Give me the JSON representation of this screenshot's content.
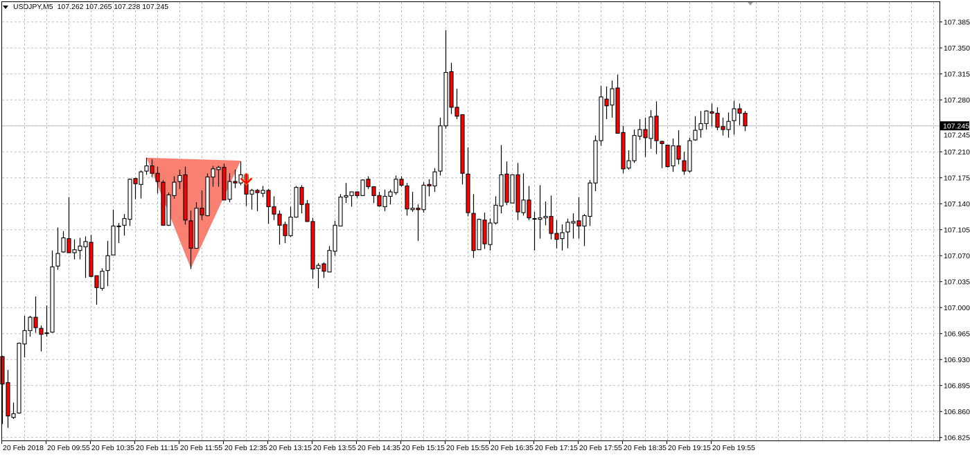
{
  "header": {
    "symbol": "USDJPY,M5",
    "ohlc": "107.262 107.265 107.238 107.245"
  },
  "colors": {
    "background": "#ffffff",
    "grid": "#c0c0c0",
    "bull_body": "#ffffff",
    "bear_body": "#ff0000",
    "wick": "#000000",
    "triangle": "#fa8072",
    "arrow": "#ff0000",
    "price_label_bg": "#000000"
  },
  "chart_data": {
    "type": "candlestick",
    "symbol": "USDJPY",
    "timeframe": "M5",
    "ylim": [
      106.825,
      107.385
    ],
    "grid": true,
    "current_price": "107.245",
    "y_ticks": [
      "107.385",
      "107.350",
      "107.315",
      "107.280",
      "107.245",
      "107.210",
      "107.175",
      "107.140",
      "107.105",
      "107.070",
      "107.035",
      "107.000",
      "106.965",
      "106.930",
      "106.895",
      "106.860",
      "106.825"
    ],
    "x_ticks": [
      "20 Feb 2018",
      "20 Feb 09:55",
      "20 Feb 10:35",
      "20 Feb 11:15",
      "20 Feb 11:55",
      "20 Feb 12:35",
      "20 Feb 13:15",
      "20 Feb 13:55",
      "20 Feb 14:35",
      "20 Feb 15:15",
      "20 Feb 15:55",
      "20 Feb 16:35",
      "20 Feb 17:15",
      "20 Feb 17:55",
      "20 Feb 18:35",
      "20 Feb 19:15",
      "20 Feb 19:55"
    ],
    "ohlc_fields": [
      "open",
      "high",
      "low",
      "close"
    ],
    "candles": [
      [
        106.934,
        106.935,
        106.843,
        106.897
      ],
      [
        106.899,
        106.916,
        106.838,
        106.854
      ],
      [
        106.852,
        106.872,
        106.85,
        106.857
      ],
      [
        106.858,
        106.953,
        106.857,
        106.952
      ],
      [
        106.951,
        106.989,
        106.933,
        106.969
      ],
      [
        106.969,
        106.989,
        106.961,
        106.987
      ],
      [
        106.987,
        107.015,
        106.966,
        106.973
      ],
      [
        106.972,
        106.976,
        106.941,
        106.964
      ],
      [
        106.966,
        107.003,
        106.961,
        106.966
      ],
      [
        106.967,
        107.077,
        106.966,
        107.055
      ],
      [
        107.056,
        107.108,
        107.051,
        107.073
      ],
      [
        107.075,
        107.103,
        107.074,
        107.094
      ],
      [
        107.093,
        107.149,
        107.074,
        107.074
      ],
      [
        107.074,
        107.092,
        107.065,
        107.078
      ],
      [
        107.077,
        107.094,
        107.065,
        107.083
      ],
      [
        107.082,
        107.096,
        107.04,
        107.089
      ],
      [
        107.088,
        107.098,
        107.041,
        107.042
      ],
      [
        107.043,
        107.043,
        107.004,
        107.027
      ],
      [
        107.026,
        107.053,
        107.023,
        107.049
      ],
      [
        107.05,
        107.09,
        107.029,
        107.07
      ],
      [
        107.071,
        107.132,
        107.071,
        107.11
      ],
      [
        107.11,
        107.114,
        107.087,
        107.11
      ],
      [
        107.111,
        107.126,
        107.097,
        107.12
      ],
      [
        107.119,
        107.174,
        107.11,
        107.173
      ],
      [
        107.174,
        107.175,
        107.146,
        107.167
      ],
      [
        107.166,
        107.185,
        107.147,
        107.183
      ],
      [
        107.184,
        107.202,
        107.179,
        107.191
      ],
      [
        107.191,
        107.2,
        107.176,
        107.181
      ],
      [
        107.181,
        107.19,
        107.154,
        107.17
      ],
      [
        107.169,
        107.172,
        107.111,
        107.111
      ],
      [
        107.111,
        107.155,
        107.11,
        107.152
      ],
      [
        107.151,
        107.177,
        107.147,
        107.169
      ],
      [
        107.17,
        107.186,
        107.16,
        107.178
      ],
      [
        107.179,
        107.19,
        107.112,
        107.118
      ],
      [
        107.117,
        107.131,
        107.052,
        107.08
      ],
      [
        107.08,
        107.142,
        107.08,
        107.134
      ],
      [
        107.134,
        107.158,
        107.118,
        107.125
      ],
      [
        107.124,
        107.181,
        107.123,
        107.176
      ],
      [
        107.176,
        107.191,
        107.163,
        107.187
      ],
      [
        107.186,
        107.191,
        107.163,
        107.189
      ],
      [
        107.189,
        107.194,
        107.145,
        107.145
      ],
      [
        107.146,
        107.181,
        107.142,
        107.17
      ],
      [
        107.17,
        107.186,
        107.161,
        107.168
      ],
      [
        107.168,
        107.197,
        107.165,
        107.179
      ],
      [
        107.179,
        107.18,
        107.137,
        107.153
      ],
      [
        107.153,
        107.16,
        107.132,
        107.158
      ],
      [
        107.158,
        107.16,
        107.13,
        107.155
      ],
      [
        107.154,
        107.164,
        107.149,
        107.158
      ],
      [
        107.158,
        107.16,
        107.113,
        107.136
      ],
      [
        107.136,
        107.15,
        107.118,
        107.126
      ],
      [
        107.126,
        107.131,
        107.085,
        107.111
      ],
      [
        107.112,
        107.116,
        107.087,
        107.097
      ],
      [
        107.097,
        107.136,
        107.095,
        107.122
      ],
      [
        107.122,
        107.164,
        107.121,
        107.162
      ],
      [
        107.162,
        107.165,
        107.127,
        107.139
      ],
      [
        107.14,
        107.145,
        107.116,
        107.116
      ],
      [
        107.116,
        107.121,
        107.039,
        107.052
      ],
      [
        107.053,
        107.06,
        107.026,
        107.057
      ],
      [
        107.059,
        107.061,
        107.04,
        107.049
      ],
      [
        107.048,
        107.083,
        107.048,
        107.077
      ],
      [
        107.076,
        107.117,
        107.07,
        107.111
      ],
      [
        107.11,
        107.153,
        107.11,
        107.149
      ],
      [
        107.149,
        107.168,
        107.141,
        107.151
      ],
      [
        107.151,
        107.156,
        107.136,
        107.156
      ],
      [
        107.156,
        107.156,
        107.148,
        107.151
      ],
      [
        107.151,
        107.173,
        107.151,
        107.172
      ],
      [
        107.173,
        107.177,
        107.16,
        107.163
      ],
      [
        107.163,
        107.163,
        107.141,
        107.151
      ],
      [
        107.151,
        107.156,
        107.136,
        107.137
      ],
      [
        107.136,
        107.159,
        107.13,
        107.15
      ],
      [
        107.15,
        107.159,
        107.139,
        107.156
      ],
      [
        107.155,
        107.178,
        107.152,
        107.173
      ],
      [
        107.173,
        107.177,
        107.163,
        107.165
      ],
      [
        107.164,
        107.168,
        107.124,
        107.133
      ],
      [
        107.132,
        107.156,
        107.129,
        107.134
      ],
      [
        107.134,
        107.139,
        107.09,
        107.132
      ],
      [
        107.132,
        107.169,
        107.128,
        107.165
      ],
      [
        107.166,
        107.173,
        107.15,
        107.164
      ],
      [
        107.164,
        107.188,
        107.156,
        107.183
      ],
      [
        107.184,
        107.256,
        107.178,
        107.245
      ],
      [
        107.245,
        107.374,
        107.241,
        107.317
      ],
      [
        107.318,
        107.33,
        107.261,
        107.27
      ],
      [
        107.27,
        107.295,
        107.254,
        107.258
      ],
      [
        107.26,
        107.26,
        107.166,
        107.181
      ],
      [
        107.18,
        107.216,
        107.123,
        107.128
      ],
      [
        107.127,
        107.153,
        107.067,
        107.077
      ],
      [
        107.078,
        107.12,
        107.078,
        107.119
      ],
      [
        107.118,
        107.128,
        107.079,
        107.086
      ],
      [
        107.085,
        107.12,
        107.077,
        107.114
      ],
      [
        107.114,
        107.15,
        107.112,
        107.138
      ],
      [
        107.137,
        107.219,
        107.127,
        107.179
      ],
      [
        107.18,
        107.197,
        107.138,
        107.142
      ],
      [
        107.141,
        107.179,
        107.141,
        107.179
      ],
      [
        107.179,
        107.195,
        107.118,
        107.129
      ],
      [
        107.128,
        107.181,
        107.124,
        107.145
      ],
      [
        107.145,
        107.164,
        107.118,
        107.121
      ],
      [
        107.12,
        107.129,
        107.077,
        107.12
      ],
      [
        107.119,
        107.165,
        107.093,
        107.121
      ],
      [
        107.121,
        107.143,
        107.111,
        107.123
      ],
      [
        107.123,
        107.151,
        107.092,
        107.1
      ],
      [
        107.1,
        107.118,
        107.08,
        107.092
      ],
      [
        107.093,
        107.112,
        107.077,
        107.101
      ],
      [
        107.102,
        107.12,
        107.08,
        107.115
      ],
      [
        107.114,
        107.127,
        107.093,
        107.116
      ],
      [
        107.117,
        107.149,
        107.093,
        107.11
      ],
      [
        107.11,
        107.126,
        107.083,
        107.124
      ],
      [
        107.123,
        107.172,
        107.11,
        107.168
      ],
      [
        107.168,
        107.232,
        107.157,
        107.225
      ],
      [
        107.225,
        107.299,
        107.218,
        107.284
      ],
      [
        107.281,
        107.298,
        107.254,
        107.272
      ],
      [
        107.273,
        107.306,
        107.256,
        107.295
      ],
      [
        107.296,
        107.314,
        107.235,
        107.235
      ],
      [
        107.236,
        107.245,
        107.181,
        107.187
      ],
      [
        107.188,
        107.212,
        107.186,
        107.198
      ],
      [
        107.198,
        107.24,
        107.195,
        107.232
      ],
      [
        107.231,
        107.254,
        107.226,
        107.24
      ],
      [
        107.24,
        107.256,
        107.203,
        107.229
      ],
      [
        107.228,
        107.266,
        107.214,
        107.257
      ],
      [
        107.258,
        107.278,
        107.207,
        107.225
      ],
      [
        107.224,
        107.225,
        107.188,
        107.221
      ],
      [
        107.219,
        107.219,
        107.189,
        107.19
      ],
      [
        107.191,
        107.228,
        107.183,
        107.218
      ],
      [
        107.218,
        107.239,
        107.193,
        107.2
      ],
      [
        107.198,
        107.21,
        107.179,
        107.184
      ],
      [
        107.184,
        107.229,
        107.182,
        107.225
      ],
      [
        107.226,
        107.258,
        107.225,
        107.239
      ],
      [
        107.24,
        107.265,
        107.229,
        107.248
      ],
      [
        107.248,
        107.266,
        107.24,
        107.265
      ],
      [
        107.264,
        107.275,
        107.244,
        107.262
      ],
      [
        107.262,
        107.27,
        107.239,
        107.243
      ],
      [
        107.244,
        107.256,
        107.232,
        107.24
      ],
      [
        107.24,
        107.263,
        107.229,
        107.251
      ],
      [
        107.252,
        107.279,
        107.233,
        107.268
      ],
      [
        107.268,
        107.275,
        107.246,
        107.262
      ],
      [
        107.262,
        107.265,
        107.238,
        107.245
      ]
    ],
    "annotations": [
      {
        "type": "triangle",
        "points": [
          [
            "11:25",
            107.202
          ],
          [
            "12:50",
            107.198
          ],
          [
            "12:05",
            107.053
          ]
        ]
      },
      {
        "type": "arrow-down",
        "time": "12:55",
        "price": 107.181
      }
    ]
  }
}
